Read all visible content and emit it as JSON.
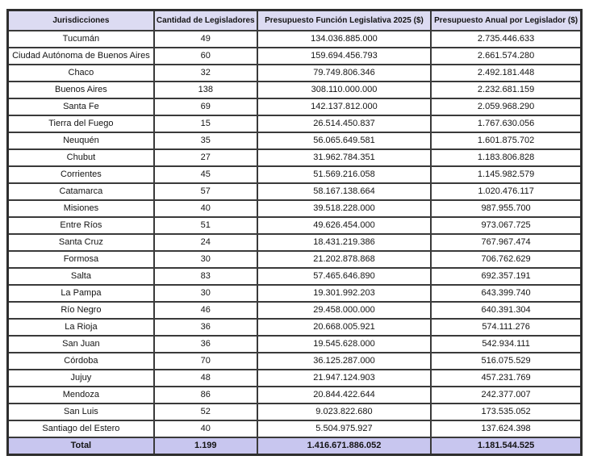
{
  "chart_data": {
    "type": "table",
    "title": "",
    "columns": [
      "Jurisdicciones",
      "Cantidad de Legisladores",
      "Presupuesto Función Legislativa 2025 ($)",
      "Presupuesto Anual por Legislador ($)"
    ],
    "rows": [
      [
        "Tucumán",
        "49",
        "134.036.885.000",
        "2.735.446.633"
      ],
      [
        "Ciudad Autónoma de Buenos Aires",
        "60",
        "159.694.456.793",
        "2.661.574.280"
      ],
      [
        "Chaco",
        "32",
        "79.749.806.346",
        "2.492.181.448"
      ],
      [
        "Buenos Aires",
        "138",
        "308.110.000.000",
        "2.232.681.159"
      ],
      [
        "Santa Fe",
        "69",
        "142.137.812.000",
        "2.059.968.290"
      ],
      [
        "Tierra del Fuego",
        "15",
        "26.514.450.837",
        "1.767.630.056"
      ],
      [
        "Neuquén",
        "35",
        "56.065.649.581",
        "1.601.875.702"
      ],
      [
        "Chubut",
        "27",
        "31.962.784.351",
        "1.183.806.828"
      ],
      [
        "Corrientes",
        "45",
        "51.569.216.058",
        "1.145.982.579"
      ],
      [
        "Catamarca",
        "57",
        "58.167.138.664",
        "1.020.476.117"
      ],
      [
        "Misiones",
        "40",
        "39.518.228.000",
        "987.955.700"
      ],
      [
        "Entre Ríos",
        "51",
        "49.626.454.000",
        "973.067.725"
      ],
      [
        "Santa Cruz",
        "24",
        "18.431.219.386",
        "767.967.474"
      ],
      [
        "Formosa",
        "30",
        "21.202.878.868",
        "706.762.629"
      ],
      [
        "Salta",
        "83",
        "57.465.646.890",
        "692.357.191"
      ],
      [
        "La Pampa",
        "30",
        "19.301.992.203",
        "643.399.740"
      ],
      [
        "Río Negro",
        "46",
        "29.458.000.000",
        "640.391.304"
      ],
      [
        "La Rioja",
        "36",
        "20.668.005.921",
        "574.111.276"
      ],
      [
        "San Juan",
        "36",
        "19.545.628.000",
        "542.934.111"
      ],
      [
        "Córdoba",
        "70",
        "36.125.287.000",
        "516.075.529"
      ],
      [
        "Jujuy",
        "48",
        "21.947.124.903",
        "457.231.769"
      ],
      [
        "Mendoza",
        "86",
        "20.844.422.644",
        "242.377.007"
      ],
      [
        "San Luis",
        "52",
        "9.023.822.680",
        "173.535.052"
      ],
      [
        "Santiago del Estero",
        "40",
        "5.504.975.927",
        "137.624.398"
      ]
    ],
    "total_row": [
      "Total",
      "1.199",
      "1.416.671.886.052",
      "1.181.544.525"
    ],
    "layout": {
      "grid": true,
      "header_position": "top",
      "total_position": "bottom"
    }
  },
  "colors": {
    "header_bg": "#dcdbf2",
    "total_bg": "#c8c6ef",
    "row_bg": "#ffffff",
    "border": "#3a3a3a",
    "text": "#141414"
  }
}
